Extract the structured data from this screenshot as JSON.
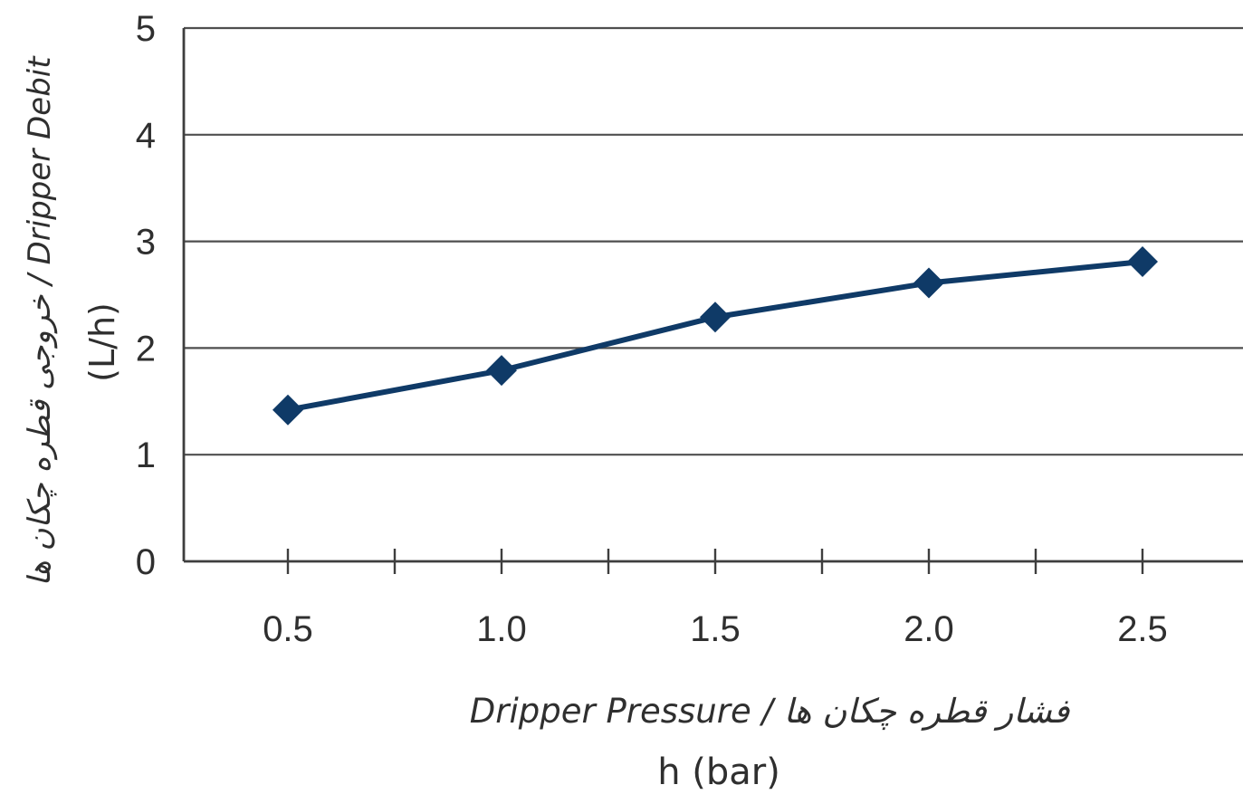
{
  "chart_data": {
    "type": "line",
    "title": "",
    "x": [
      0.5,
      1.0,
      1.5,
      2.0,
      2.5
    ],
    "x_tick_labels": [
      "0.5",
      "1.0",
      "1.5",
      "2.0",
      "2.5"
    ],
    "y_ticks": [
      0,
      1,
      2,
      3,
      4,
      5
    ],
    "ylim": [
      0,
      5
    ],
    "series": [
      {
        "values": [
          1.42,
          1.79,
          2.29,
          2.61,
          2.81
        ]
      }
    ],
    "xlabel_line1": "Dripper Pressure / فشار قطره چکان ها",
    "xlabel_line2": "h (bar)",
    "ylabel_line1": "خروجی قطره چکان ها / Dripper Debit",
    "ylabel_line2": "(L/h)",
    "grid": true,
    "line_color": "#0f3a67",
    "marker": "diamond"
  }
}
